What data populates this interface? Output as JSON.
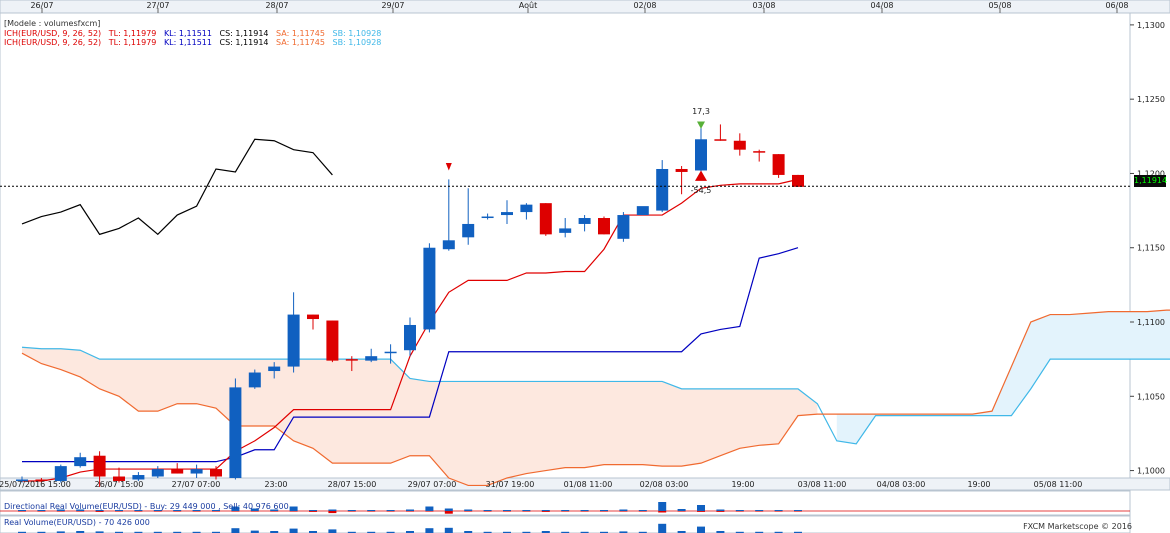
{
  "header": {
    "model_label": "[Modele : volumesfxcm]",
    "ich_lines": [
      {
        "name": "ICH(EUR/USD, 9, 26, 52)",
        "tl": "TL: 1,11979",
        "kl": "KL: 1,11511",
        "cs": "CS: 1,11914",
        "sa": "SA: 1,11745",
        "sb": "SB: 1,10928"
      },
      {
        "name": "ICH(EUR/USD, 9, 26, 52)",
        "tl": "TL: 1,11979",
        "kl": "KL: 1,11511",
        "cs": "CS: 1,11914",
        "sa": "SA: 1,11745",
        "sb": "SB: 1,10928"
      }
    ]
  },
  "current_price_label": "1,11914",
  "annotations": {
    "up_value": "17,3",
    "down_value": "-54,5"
  },
  "volume_panels": {
    "directional": {
      "label": "Directional Real Volume(EUR/USD) - Buy: 29 449 000 , Sell: 40 976 600"
    },
    "real": {
      "label": "Real Volume(EUR/USD) - 70 426 000"
    }
  },
  "credit": "FXCM Marketscope © 2016",
  "colors": {
    "bull": "#1060c0",
    "bear": "#dd0000",
    "tenkan": "#e00000",
    "kijun": "#0000c0",
    "chikou": "#000000",
    "senkou_a": "#f06a30",
    "senkou_b": "#40b8e8",
    "cloud_bear": "#fde8df",
    "cloud_bull": "#e3f3fc"
  },
  "chart_data": {
    "type": "candlestick",
    "top_axis_labels": [
      "26/07",
      "27/07",
      "28/07",
      "29/07",
      "Août",
      "02/08",
      "03/08",
      "04/08",
      "05/08",
      "06/08"
    ],
    "bottom_axis_labels": [
      "25/07/2016 15:00",
      "26/07 15:00",
      "27/07 07:00",
      "23:00",
      "28/07 15:00",
      "29/07 07:00",
      "31/07 19:00",
      "01/08 11:00",
      "02/08 03:00",
      "19:00",
      "03/08 11:00",
      "04/08 03:00",
      "19:00",
      "05/08 11:00"
    ],
    "y_ticks": [
      "1,1300",
      "1,1250",
      "1,1200",
      "1,1150",
      "1,1100",
      "1,1050",
      "1,1000"
    ],
    "ylim": [
      1.0995,
      1.1308
    ],
    "current_price": 1.11914,
    "candles": [
      [
        1.0993,
        1.0996,
        1.0992,
        1.0994
      ],
      [
        1.0994,
        1.0995,
        1.0992,
        1.0993
      ],
      [
        1.0993,
        1.1004,
        1.0992,
        1.1003
      ],
      [
        1.1003,
        1.1012,
        1.1002,
        1.1009
      ],
      [
        1.101,
        1.1013,
        1.0989,
        1.0996
      ],
      [
        1.0996,
        1.1002,
        1.0992,
        1.0993
      ],
      [
        1.0994,
        1.0999,
        1.0993,
        1.0997
      ],
      [
        1.0996,
        1.1003,
        1.0995,
        1.1001
      ],
      [
        1.1001,
        1.1005,
        1.0998,
        1.0998
      ],
      [
        1.0998,
        1.1004,
        1.0995,
        1.1001
      ],
      [
        1.1001,
        1.1003,
        1.0994,
        1.0996
      ],
      [
        1.0995,
        1.1062,
        1.0994,
        1.1056
      ],
      [
        1.1056,
        1.1068,
        1.1055,
        1.1066
      ],
      [
        1.1067,
        1.1073,
        1.1062,
        1.107
      ],
      [
        1.107,
        1.112,
        1.1066,
        1.1105
      ],
      [
        1.1105,
        1.1105,
        1.1095,
        1.1102
      ],
      [
        1.1101,
        1.1101,
        1.1073,
        1.1074
      ],
      [
        1.1075,
        1.1077,
        1.1067,
        1.1074
      ],
      [
        1.1074,
        1.1082,
        1.1073,
        1.1077
      ],
      [
        1.108,
        1.1085,
        1.1072,
        1.108
      ],
      [
        1.1081,
        1.1103,
        1.1077,
        1.1098
      ],
      [
        1.1095,
        1.1153,
        1.1093,
        1.115
      ],
      [
        1.1149,
        1.1196,
        1.1148,
        1.1155
      ],
      [
        1.1157,
        1.119,
        1.1152,
        1.1166
      ],
      [
        1.117,
        1.1173,
        1.1169,
        1.1171
      ],
      [
        1.1172,
        1.1182,
        1.1166,
        1.1174
      ],
      [
        1.1174,
        1.118,
        1.1169,
        1.1179
      ],
      [
        1.118,
        1.118,
        1.1158,
        1.1159
      ],
      [
        1.116,
        1.117,
        1.1157,
        1.1163
      ],
      [
        1.1166,
        1.1172,
        1.1161,
        1.117
      ],
      [
        1.117,
        1.1171,
        1.1159,
        1.1159
      ],
      [
        1.1156,
        1.1174,
        1.1154,
        1.1172
      ],
      [
        1.1172,
        1.1177,
        1.1172,
        1.1178
      ],
      [
        1.1175,
        1.1209,
        1.1174,
        1.1203
      ],
      [
        1.1203,
        1.1205,
        1.1186,
        1.1201
      ],
      [
        1.1202,
        1.1234,
        1.1201,
        1.1223
      ],
      [
        1.1223,
        1.1233,
        1.1222,
        1.1222
      ],
      [
        1.1222,
        1.1227,
        1.1212,
        1.1216
      ],
      [
        1.1215,
        1.1216,
        1.1208,
        1.1214
      ],
      [
        1.1213,
        1.1213,
        1.1197,
        1.1199
      ],
      [
        1.1199,
        1.1199,
        1.1191,
        1.1191
      ]
    ],
    "tenkan_sen": [
      1.0993,
      1.0993,
      1.0995,
      1.0999,
      1.1001,
      1.1001,
      1.1001,
      1.1001,
      1.1001,
      1.1001,
      1.1001,
      1.1013,
      1.102,
      1.1029,
      1.1041,
      1.1041,
      1.1041,
      1.1041,
      1.1041,
      1.1041,
      1.1077,
      1.11,
      1.112,
      1.1128,
      1.1128,
      1.1128,
      1.1133,
      1.1133,
      1.1134,
      1.1134,
      1.1149,
      1.1172,
      1.1172,
      1.1172,
      1.118,
      1.119,
      1.1192,
      1.1193,
      1.1193,
      1.1193,
      1.1196
    ],
    "kijun_sen": [
      1.1006,
      1.1006,
      1.1006,
      1.1006,
      1.1006,
      1.1006,
      1.1006,
      1.1006,
      1.1006,
      1.1006,
      1.1006,
      1.1009,
      1.1014,
      1.1014,
      1.1036,
      1.1036,
      1.1036,
      1.1036,
      1.1036,
      1.1036,
      1.1036,
      1.1036,
      1.108,
      1.108,
      1.108,
      1.108,
      1.108,
      1.108,
      1.108,
      1.108,
      1.108,
      1.108,
      1.108,
      1.108,
      1.108,
      1.1092,
      1.1095,
      1.1097,
      1.1143,
      1.1146,
      1.115
    ],
    "chikou_span": [
      1.1166,
      1.1171,
      1.1174,
      1.1179,
      1.1159,
      1.1163,
      1.117,
      1.1159,
      1.1172,
      1.1178,
      1.1203,
      1.1201,
      1.1223,
      1.1222,
      1.1216,
      1.1214,
      1.1199
    ],
    "senkou_a": [
      1.1079,
      1.1072,
      1.1068,
      1.1063,
      1.1055,
      1.105,
      1.104,
      1.104,
      1.1045,
      1.1045,
      1.1042,
      1.103,
      1.103,
      1.103,
      1.102,
      1.1015,
      1.1005,
      1.1005,
      1.1005,
      1.1005,
      1.101,
      1.101,
      1.0995,
      1.099,
      1.099,
      1.0995,
      1.0998,
      1.1,
      1.1002,
      1.1002,
      1.1004,
      1.1004,
      1.1004,
      1.1003,
      1.1003,
      1.1005,
      1.101,
      1.1015,
      1.1017,
      1.1018,
      1.1037,
      1.1038,
      1.1038,
      1.1038,
      1.1038,
      1.1038,
      1.1038,
      1.1038,
      1.1038,
      1.1038,
      1.104,
      1.107,
      1.11,
      1.1105,
      1.1105,
      1.1106,
      1.1107,
      1.1107,
      1.1107,
      1.1108,
      1.1108,
      1.111,
      1.112
    ],
    "senkou_b": [
      1.1083,
      1.1082,
      1.1082,
      1.1081,
      1.1075,
      1.1075,
      1.1075,
      1.1075,
      1.1075,
      1.1075,
      1.1075,
      1.1075,
      1.1075,
      1.1075,
      1.1075,
      1.1075,
      1.1075,
      1.1075,
      1.1075,
      1.1075,
      1.1062,
      1.106,
      1.106,
      1.106,
      1.106,
      1.106,
      1.106,
      1.106,
      1.106,
      1.106,
      1.106,
      1.106,
      1.106,
      1.106,
      1.1055,
      1.1055,
      1.1055,
      1.1055,
      1.1055,
      1.1055,
      1.1055,
      1.1045,
      1.102,
      1.1018,
      1.1037,
      1.1037,
      1.1037,
      1.1037,
      1.1037,
      1.1037,
      1.1037,
      1.1037,
      1.1055,
      1.1075,
      1.1075,
      1.1075,
      1.1075,
      1.1075,
      1.1075,
      1.1075,
      1.1075,
      1.1075,
      1.1075,
      1.1075
    ],
    "directional_volume": {
      "buy": [
        0.2,
        0.2,
        0.3,
        0.3,
        0.2,
        0.2,
        0.2,
        0.2,
        0.2,
        0.2,
        0.2,
        0.9,
        0.5,
        0.3,
        0.9,
        0.2,
        0.3,
        0.2,
        0.2,
        0.2,
        0.3,
        0.9,
        0.5,
        0.3,
        0.2,
        0.2,
        0.2,
        0.2,
        0.2,
        0.2,
        0.2,
        0.3,
        0.2,
        1.8,
        0.4,
        1.2,
        0.3,
        0.2,
        0.2,
        0.2,
        0.2
      ],
      "sell": [
        0.2,
        0.2,
        0.2,
        0.2,
        0.3,
        0.2,
        0.2,
        0.2,
        0.2,
        0.2,
        0.2,
        0.2,
        0.2,
        0.2,
        0.2,
        0.3,
        0.7,
        0.2,
        0.2,
        0.2,
        0.2,
        0.2,
        0.9,
        0.2,
        0.2,
        0.2,
        0.2,
        0.3,
        0.2,
        0.2,
        0.2,
        0.2,
        0.2,
        0.5,
        0.2,
        0.3,
        0.3,
        0.2,
        0.2,
        0.2,
        0.2
      ]
    },
    "real_volume": [
      0.3,
      0.3,
      0.4,
      0.5,
      0.4,
      0.3,
      0.3,
      0.3,
      0.3,
      0.3,
      0.3,
      1.2,
      0.6,
      0.5,
      1.1,
      0.5,
      0.9,
      0.3,
      0.3,
      0.3,
      0.5,
      1.2,
      1.3,
      0.5,
      0.3,
      0.3,
      0.3,
      0.5,
      0.3,
      0.3,
      0.3,
      0.4,
      0.3,
      2.3,
      0.5,
      1.6,
      0.5,
      0.3,
      0.3,
      0.3,
      0.3
    ]
  }
}
